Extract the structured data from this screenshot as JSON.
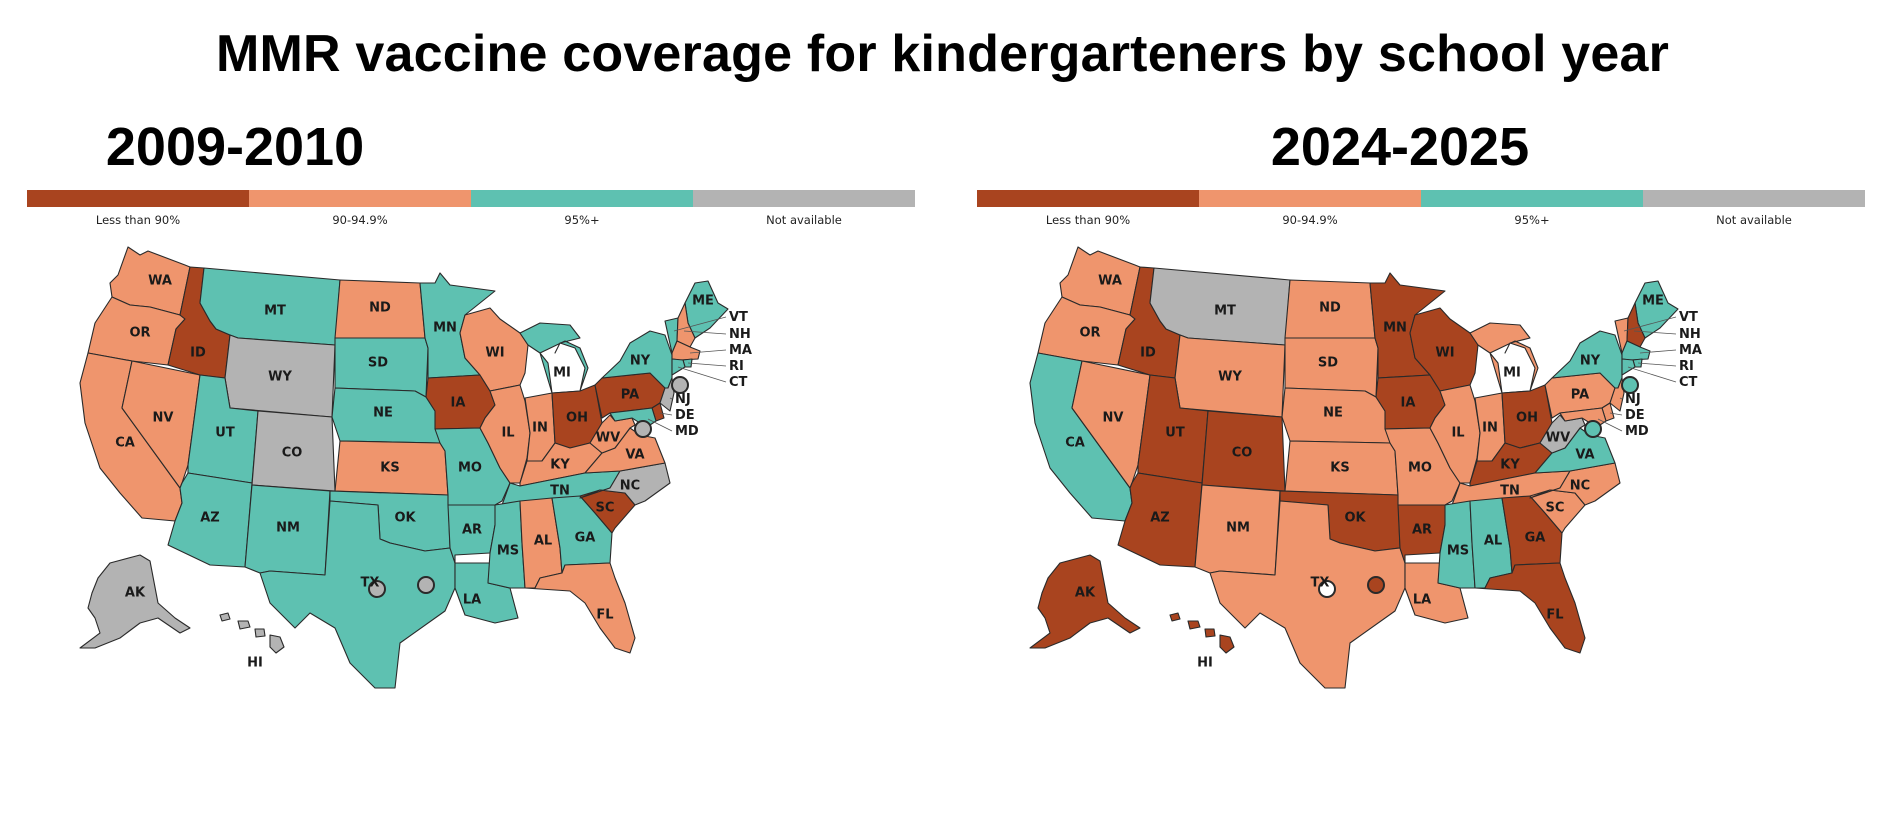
{
  "title": "MMR vaccine coverage for kindergarteners by school year",
  "legend": {
    "categories": [
      {
        "key": "lt90",
        "label": "Less than 90%",
        "color": "#A9441F"
      },
      {
        "key": "90to95",
        "label": "90-94.9%",
        "color": "#EF956D"
      },
      {
        "key": "ge95",
        "label": "95%+",
        "color": "#5EC1B1"
      },
      {
        "key": "na",
        "label": "Not available",
        "color": "#B3B3B3"
      }
    ]
  },
  "maps": [
    {
      "year": "2009-2010",
      "states": {
        "WA": "90to95",
        "OR": "90to95",
        "CA": "90to95",
        "NV": "90to95",
        "ID": "lt90",
        "MT": "ge95",
        "WY": "na",
        "UT": "ge95",
        "AZ": "ge95",
        "CO": "na",
        "NM": "ge95",
        "ND": "90to95",
        "SD": "ge95",
        "NE": "ge95",
        "KS": "90to95",
        "OK": "ge95",
        "TX": "ge95",
        "MN": "ge95",
        "IA": "lt90",
        "MO": "ge95",
        "AR": "ge95",
        "LA": "ge95",
        "WI": "90to95",
        "IL": "90to95",
        "MI": "ge95",
        "IN": "90to95",
        "OH": "lt90",
        "KY": "90to95",
        "TN": "ge95",
        "MS": "ge95",
        "AL": "90to95",
        "GA": "ge95",
        "FL": "90to95",
        "SC": "lt90",
        "NC": "na",
        "VA": "90to95",
        "WV": "90to95",
        "PA": "lt90",
        "NY": "ge95",
        "ME": "ge95",
        "AK": "na",
        "HI": "na",
        "VT": "ge95",
        "NH": "90to95",
        "MA": "90to95",
        "RI": "ge95",
        "CT": "ge95",
        "NJ": "na",
        "DE": "lt90",
        "MD": "ge95",
        "DC": "na"
      },
      "cities": [
        "na",
        "na"
      ]
    },
    {
      "year": "2024-2025",
      "states": {
        "WA": "90to95",
        "OR": "90to95",
        "CA": "ge95",
        "NV": "90to95",
        "ID": "lt90",
        "MT": "na",
        "WY": "90to95",
        "UT": "lt90",
        "AZ": "lt90",
        "CO": "lt90",
        "NM": "90to95",
        "ND": "90to95",
        "SD": "90to95",
        "NE": "90to95",
        "KS": "90to95",
        "OK": "lt90",
        "TX": "90to95",
        "MN": "lt90",
        "IA": "lt90",
        "MO": "90to95",
        "AR": "lt90",
        "LA": "90to95",
        "WI": "lt90",
        "IL": "90to95",
        "MI": "90to95",
        "IN": "90to95",
        "OH": "lt90",
        "KY": "lt90",
        "TN": "90to95",
        "MS": "ge95",
        "AL": "ge95",
        "GA": "lt90",
        "FL": "lt90",
        "SC": "90to95",
        "NC": "90to95",
        "VA": "ge95",
        "WV": "na",
        "PA": "90to95",
        "NY": "ge95",
        "ME": "ge95",
        "AK": "lt90",
        "HI": "lt90",
        "VT": "90to95",
        "NH": "lt90",
        "MA": "ge95",
        "RI": "ge95",
        "CT": "ge95",
        "NJ": "90to95",
        "DE": "90to95",
        "MD": "90to95",
        "DC": "ge95"
      },
      "cities": [
        "white",
        "lt90"
      ]
    }
  ]
}
